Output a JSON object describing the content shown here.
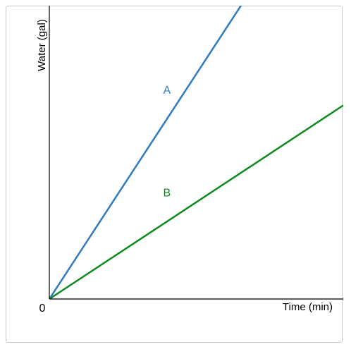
{
  "chart_data": {
    "type": "line",
    "xlabel": "Time (min)",
    "ylabel": "Water (gal)",
    "origin_label": "0",
    "xlim": [
      0,
      10
    ],
    "ylim": [
      0,
      10
    ],
    "grid": false,
    "series": [
      {
        "name": "A",
        "color": "#2e7bbf",
        "x": [
          0,
          6.65
        ],
        "y": [
          0,
          10.2
        ],
        "label_at": [
          4.0,
          7.0
        ]
      },
      {
        "name": "B",
        "color": "#0a8a1f",
        "x": [
          0,
          10.0
        ],
        "y": [
          0,
          6.6
        ],
        "label_at": [
          4.0,
          3.5
        ]
      }
    ]
  }
}
